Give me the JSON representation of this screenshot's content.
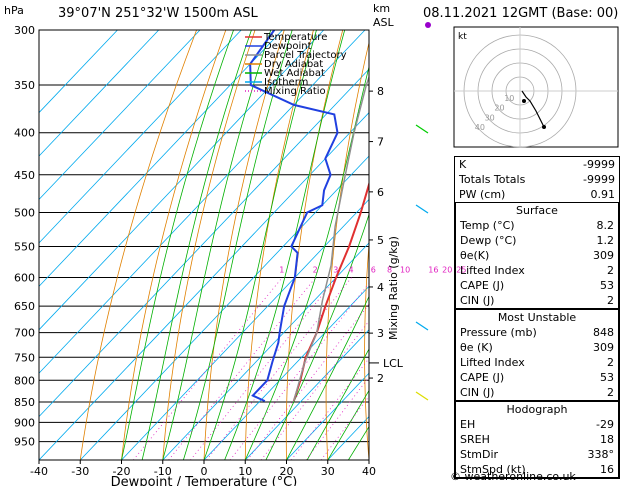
{
  "header": {
    "location": "39°07'N  251°32'W  1500m  ASL",
    "datetime": "08.11.2021  12GMT  (Base: 00)"
  },
  "chart_data": {
    "type": "line",
    "title": "",
    "xlabel": "Dewpoint / Temperature (°C)",
    "ylabel": "hPa",
    "right_label_top": "km\nASL",
    "right_axis_label": "Mixing Ratio (g/kg)",
    "xlim": [
      -40,
      40
    ],
    "ylim": [
      1000,
      300
    ],
    "x_ticks": [
      -40,
      -30,
      -20,
      -10,
      0,
      10,
      20,
      30,
      40
    ],
    "pressure_ticks": [
      300,
      350,
      400,
      450,
      500,
      550,
      600,
      650,
      700,
      750,
      800,
      850,
      900,
      950
    ],
    "km_ticks": [
      {
        "km": "8",
        "p": 356
      },
      {
        "km": "7",
        "p": 410
      },
      {
        "km": "6",
        "p": 472
      },
      {
        "km": "5",
        "p": 540
      },
      {
        "km": "4",
        "p": 616
      },
      {
        "km": "3",
        "p": 701
      },
      {
        "km": "2",
        "p": 795
      }
    ],
    "lcl": {
      "label": "LCL",
      "p": 762
    },
    "mixing_ratio_labels": [
      "1",
      "2",
      "3",
      "4",
      "6",
      "8",
      "10",
      "16",
      "20",
      "25"
    ],
    "legend": [
      {
        "name": "Temperature",
        "color": "#e03030"
      },
      {
        "name": "Dewpoint",
        "color": "#2040e0"
      },
      {
        "name": "Parcel Trajectory",
        "color": "#909090"
      },
      {
        "name": "Dry Adiabat",
        "color": "#e08000"
      },
      {
        "name": "Wet Adiabat",
        "color": "#00b000"
      },
      {
        "name": "Isotherm",
        "color": "#00aaee"
      },
      {
        "name": "Mixing Ratio",
        "color": "#e020c0"
      }
    ],
    "series": [
      {
        "name": "Temperature",
        "color": "#e03030",
        "points": [
          [
            8.2,
            848
          ],
          [
            5,
            800
          ],
          [
            1,
            750
          ],
          [
            -2,
            700
          ],
          [
            -6,
            650
          ],
          [
            -10,
            600
          ],
          [
            -14,
            550
          ],
          [
            -19,
            500
          ],
          [
            -25,
            450
          ],
          [
            -32,
            400
          ],
          [
            -35,
            375
          ],
          [
            -33,
            350
          ],
          [
            -32,
            325
          ],
          [
            -32,
            300
          ]
        ]
      },
      {
        "name": "Dewpoint",
        "color": "#2040e0",
        "points": [
          [
            1.2,
            848
          ],
          [
            -3,
            835
          ],
          [
            -3,
            800
          ],
          [
            -6,
            760
          ],
          [
            -9,
            720
          ],
          [
            -11,
            700
          ],
          [
            -16,
            650
          ],
          [
            -20,
            600
          ],
          [
            -25,
            560
          ],
          [
            -28,
            550
          ],
          [
            -32,
            500
          ],
          [
            -30,
            490
          ],
          [
            -33,
            470
          ],
          [
            -35,
            450
          ],
          [
            -40,
            430
          ],
          [
            -43,
            400
          ],
          [
            -48,
            380
          ],
          [
            -60,
            370
          ],
          [
            -75,
            350
          ],
          [
            -80,
            330
          ],
          [
            -82,
            300
          ]
        ]
      },
      {
        "name": "Parcel Trajectory",
        "color": "#909090",
        "points": [
          [
            8.2,
            848
          ],
          [
            2,
            762
          ],
          [
            -2,
            700
          ],
          [
            -8,
            640
          ],
          [
            -14,
            580
          ],
          [
            -22,
            520
          ],
          [
            -30,
            460
          ],
          [
            -39,
            400
          ],
          [
            -47,
            350
          ],
          [
            -55,
            300
          ]
        ]
      }
    ]
  },
  "hodograph": {
    "label": "kt",
    "rings": [
      "10",
      "20",
      "30",
      "40"
    ]
  },
  "indices": [
    {
      "label": "K",
      "value": "-9999"
    },
    {
      "label": "Totals Totals",
      "value": "-9999"
    },
    {
      "label": "PW (cm)",
      "value": "0.91"
    }
  ],
  "surface": {
    "title": "Surface",
    "rows": [
      {
        "label": "Temp (°C)",
        "value": "8.2"
      },
      {
        "label": "Dewp (°C)",
        "value": "1.2"
      },
      {
        "label": "θe(K)",
        "value": "309"
      },
      {
        "label": "Lifted Index",
        "value": "2"
      },
      {
        "label": "CAPE (J)",
        "value": "53"
      },
      {
        "label": "CIN (J)",
        "value": "2"
      }
    ]
  },
  "most_unstable": {
    "title": "Most Unstable",
    "rows": [
      {
        "label": "Pressure (mb)",
        "value": "848"
      },
      {
        "label": "θe (K)",
        "value": "309"
      },
      {
        "label": "Lifted Index",
        "value": "2"
      },
      {
        "label": "CAPE (J)",
        "value": "53"
      },
      {
        "label": "CIN (J)",
        "value": "2"
      }
    ]
  },
  "hodograph_table": {
    "title": "Hodograph",
    "rows": [
      {
        "label": "EH",
        "value": "-29"
      },
      {
        "label": "SREH",
        "value": "18"
      },
      {
        "label": "StmDir",
        "value": "338°"
      },
      {
        "label": "StmSpd (kt)",
        "value": "16"
      }
    ]
  },
  "copyright": "© weatheronline.co.uk"
}
